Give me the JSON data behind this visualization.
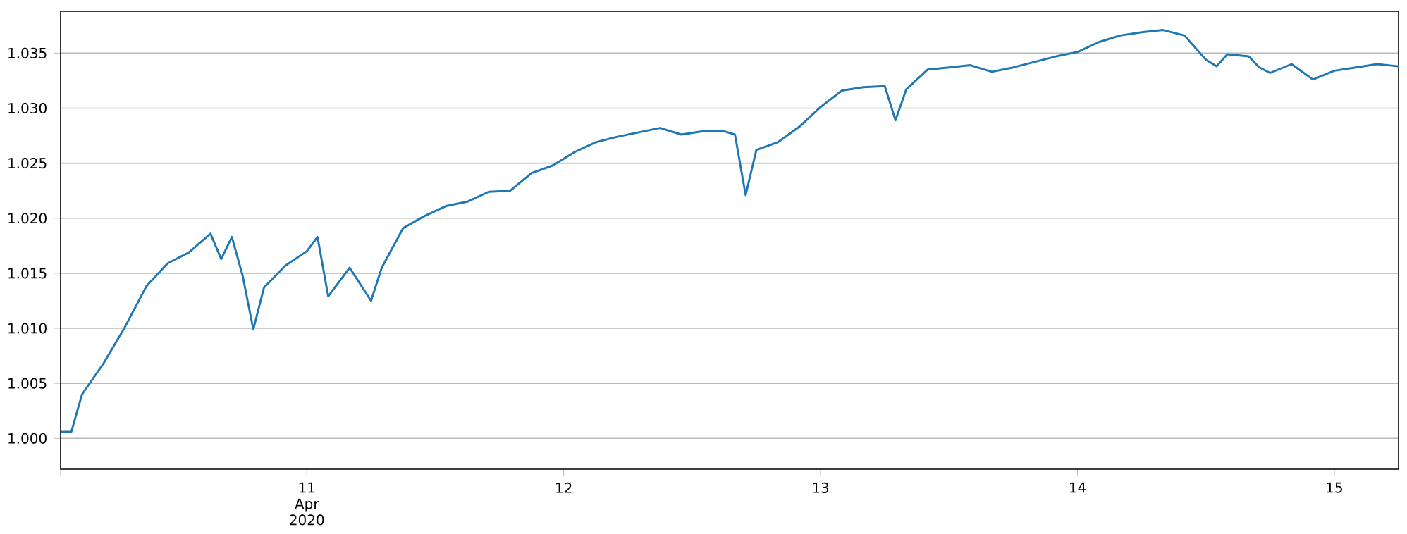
{
  "chart_data": {
    "type": "line",
    "grid": "y",
    "line_style": "solid",
    "xlim": [
      "2020-04-10T01:00",
      "2020-04-15T06:00"
    ],
    "ylim": [
      0.9972,
      1.0388
    ],
    "xticks": [
      {
        "value": "2020-04-10T01:00",
        "label": null
      },
      {
        "value": "2020-04-11",
        "label": "11 Apr 2020"
      },
      {
        "value": "2020-04-12",
        "label": "12"
      },
      {
        "value": "2020-04-13",
        "label": "13"
      },
      {
        "value": "2020-04-14",
        "label": "14"
      },
      {
        "value": "2020-04-15",
        "label": "15"
      }
    ],
    "yticks": [
      {
        "value": 1.0,
        "label": "1.000"
      },
      {
        "value": 1.005,
        "label": "1.005"
      },
      {
        "value": 1.01,
        "label": "1.010"
      },
      {
        "value": 1.015,
        "label": "1.015"
      },
      {
        "value": 1.02,
        "label": "1.020"
      },
      {
        "value": 1.025,
        "label": "1.025"
      },
      {
        "value": 1.03,
        "label": "1.030"
      },
      {
        "value": 1.035,
        "label": "1.035"
      }
    ],
    "series": [
      {
        "color": "#1f77b4",
        "x": [
          "2020-04-10T01:00",
          "2020-04-10T02:00",
          "2020-04-10T03:00",
          "2020-04-10T05:00",
          "2020-04-10T07:00",
          "2020-04-10T09:00",
          "2020-04-10T11:00",
          "2020-04-10T13:00",
          "2020-04-10T15:00",
          "2020-04-10T16:00",
          "2020-04-10T17:00",
          "2020-04-10T18:00",
          "2020-04-10T19:00",
          "2020-04-10T20:00",
          "2020-04-10T22:00",
          "2020-04-11T00:00",
          "2020-04-11T01:00",
          "2020-04-11T02:00",
          "2020-04-11T04:00",
          "2020-04-11T06:00",
          "2020-04-11T07:00",
          "2020-04-11T09:00",
          "2020-04-11T11:00",
          "2020-04-11T13:00",
          "2020-04-11T15:00",
          "2020-04-11T17:00",
          "2020-04-11T19:00",
          "2020-04-11T21:00",
          "2020-04-11T23:00",
          "2020-04-12T01:00",
          "2020-04-12T03:00",
          "2020-04-12T05:00",
          "2020-04-12T07:00",
          "2020-04-12T09:00",
          "2020-04-12T11:00",
          "2020-04-12T13:00",
          "2020-04-12T15:00",
          "2020-04-12T16:00",
          "2020-04-12T17:00",
          "2020-04-12T18:00",
          "2020-04-12T20:00",
          "2020-04-12T22:00",
          "2020-04-13T00:00",
          "2020-04-13T02:00",
          "2020-04-13T04:00",
          "2020-04-13T06:00",
          "2020-04-13T07:00",
          "2020-04-13T08:00",
          "2020-04-13T10:00",
          "2020-04-13T12:00",
          "2020-04-13T14:00",
          "2020-04-13T16:00",
          "2020-04-13T18:00",
          "2020-04-13T20:00",
          "2020-04-13T22:00",
          "2020-04-14T00:00",
          "2020-04-14T02:00",
          "2020-04-14T04:00",
          "2020-04-14T06:00",
          "2020-04-14T08:00",
          "2020-04-14T10:00",
          "2020-04-14T12:00",
          "2020-04-14T13:00",
          "2020-04-14T14:00",
          "2020-04-14T16:00",
          "2020-04-14T17:00",
          "2020-04-14T18:00",
          "2020-04-14T20:00",
          "2020-04-14T22:00",
          "2020-04-15T00:00",
          "2020-04-15T02:00",
          "2020-04-15T04:00",
          "2020-04-15T06:00"
        ],
        "values": [
          1.0006,
          1.0006,
          1.004,
          1.0068,
          1.0101,
          1.0138,
          1.0159,
          1.0169,
          1.0186,
          1.0163,
          1.0183,
          1.0148,
          1.0099,
          1.0137,
          1.0157,
          1.017,
          1.0183,
          1.0129,
          1.0155,
          1.0125,
          1.0155,
          1.0191,
          1.0202,
          1.0211,
          1.0215,
          1.0224,
          1.0225,
          1.0241,
          1.0248,
          1.026,
          1.0269,
          1.0274,
          1.0278,
          1.0282,
          1.0276,
          1.0279,
          1.0279,
          1.0276,
          1.0221,
          1.0262,
          1.0269,
          1.0283,
          1.0301,
          1.0316,
          1.0319,
          1.032,
          1.0289,
          1.0317,
          1.0335,
          1.0337,
          1.0339,
          1.0333,
          1.0337,
          1.0342,
          1.0347,
          1.0351,
          1.036,
          1.0366,
          1.0369,
          1.0371,
          1.0366,
          1.0344,
          1.0338,
          1.0349,
          1.0347,
          1.0337,
          1.0332,
          1.034,
          1.0326,
          1.0334,
          1.0337,
          1.034,
          1.0338
        ]
      }
    ]
  }
}
